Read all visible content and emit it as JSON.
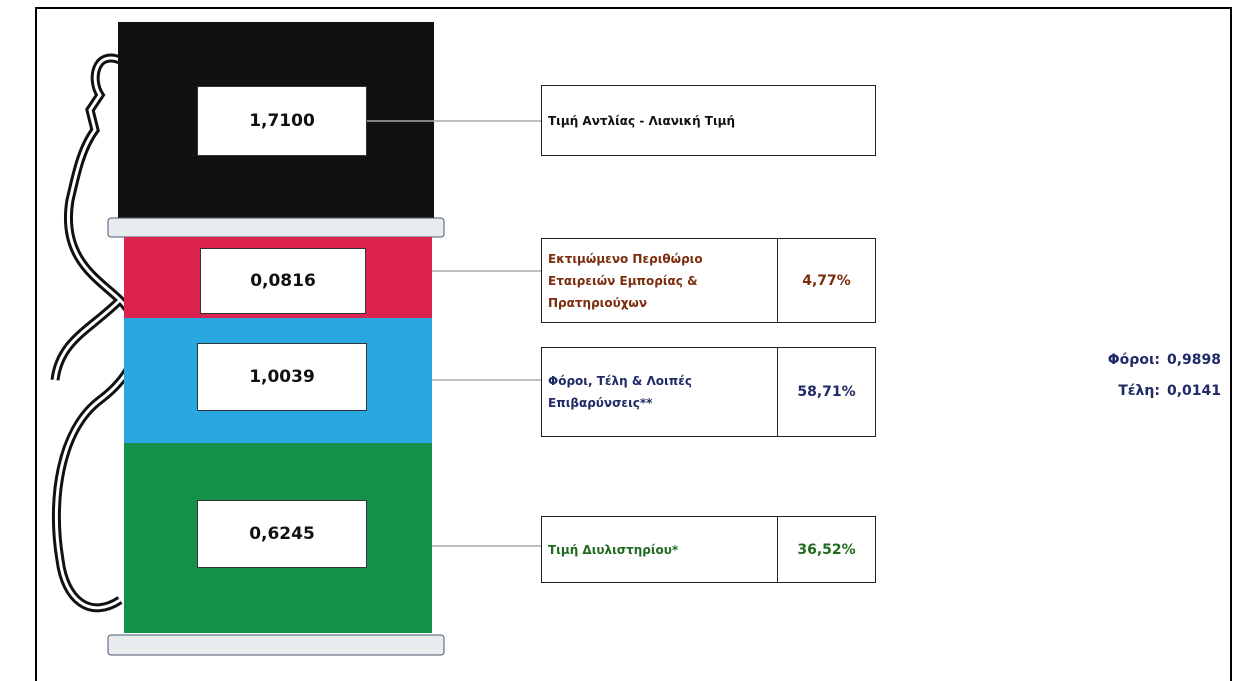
{
  "pump": {
    "retail_price": "1,7100",
    "margin": "0,0816",
    "taxes": "1,0039",
    "refinery": "0,6245"
  },
  "labels": [
    {
      "text": "Τιμή Αντλίας - Λιανική Τιμή"
    },
    {
      "text": "Εκτιμώμενο Περιθώριο Εταιρειών Εμπορίας & Πρατηριούχων",
      "percent": "4,77%"
    },
    {
      "text": "Φόροι, Τέλη & Λοιπές Επιβαρύνσεις**",
      "percent": "58,71%"
    },
    {
      "text": "Τιμή Διυλιστηρίου*",
      "percent": "36,52%"
    }
  ],
  "breakdown": [
    {
      "label": "Φόροι:",
      "value": "0,9898"
    },
    {
      "label": "Τέλη:",
      "value": "0,0141"
    }
  ]
}
